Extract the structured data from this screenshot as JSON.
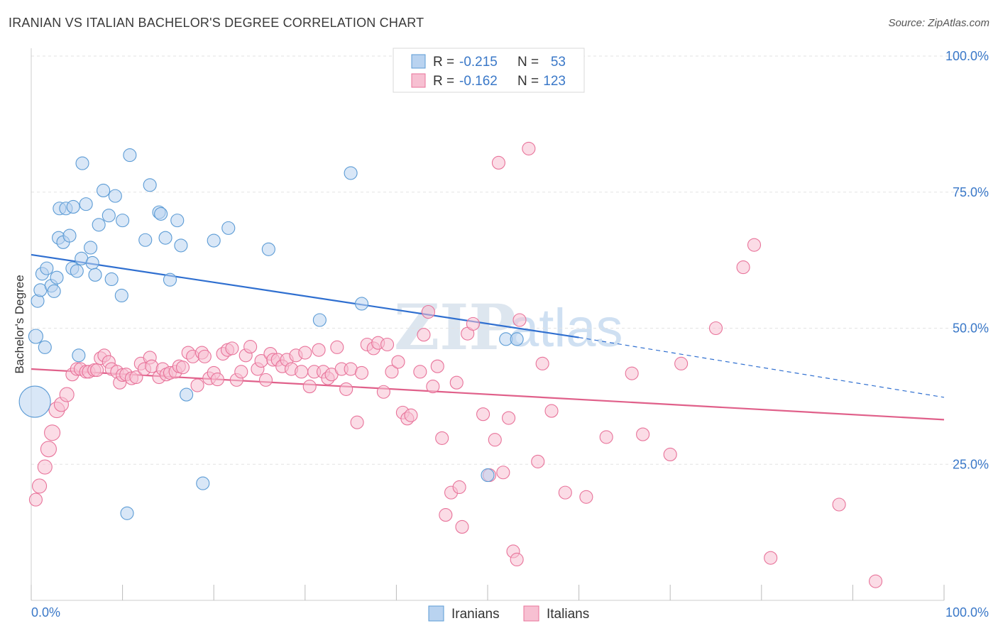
{
  "title": "IRANIAN VS ITALIAN BACHELOR'S DEGREE CORRELATION CHART",
  "source": "Source: ZipAtlas.com",
  "watermark": {
    "zip": "ZIP",
    "atlas": "atlas"
  },
  "colors": {
    "blue": "#5b9bd5",
    "blue_fill": "#b9d3f0",
    "pink": "#e8739a",
    "pink_fill": "#f7c0d2",
    "blue_line": "#2f6fd0",
    "pink_line": "#e0608a",
    "label": "#3a78c8"
  },
  "legend": {
    "rows": [
      {
        "r_label": "R =",
        "r_value": "-0.215",
        "n_label": "N =",
        "n_value": "53"
      },
      {
        "r_label": "R =",
        "r_value": "-0.162",
        "n_label": "N =",
        "n_value": "123"
      }
    ]
  },
  "chart_data": {
    "type": "scatter",
    "title": "IRANIAN VS ITALIAN BACHELOR'S DEGREE CORRELATION CHART",
    "xlabel": "",
    "ylabel": "Bachelor's Degree",
    "xlim": [
      0,
      100
    ],
    "ylim": [
      0,
      100
    ],
    "x_tick_labels": [
      "0.0%",
      "100.0%"
    ],
    "y_ticks": [
      25,
      50,
      75,
      100
    ],
    "y_tick_labels": [
      "25.0%",
      "50.0%",
      "75.0%",
      "100.0%"
    ],
    "grid": "horizontal dashed",
    "legend_position": "top-center",
    "series": [
      {
        "name": "Iranians",
        "color": "#5b9bd5",
        "trend": {
          "x0": 0,
          "y0": 63.5,
          "x1": 60,
          "y1": 48.3,
          "dashed_to_x": 100,
          "dashed_to_y": 37.3
        },
        "points": [
          [
            0.4,
            36.5,
            22
          ],
          [
            0.5,
            48.5,
            10
          ],
          [
            0.7,
            55,
            9
          ],
          [
            1,
            57,
            9
          ],
          [
            1.2,
            60,
            9
          ],
          [
            1.5,
            46.5,
            9
          ],
          [
            1.7,
            61,
            9
          ],
          [
            2.2,
            57.8,
            9
          ],
          [
            2.5,
            56.8,
            9
          ],
          [
            2.8,
            59.3,
            9
          ],
          [
            3,
            66.6,
            9
          ],
          [
            3.1,
            72,
            9
          ],
          [
            3.5,
            65.8,
            9
          ],
          [
            3.8,
            72,
            9
          ],
          [
            4.2,
            67,
            9
          ],
          [
            4.5,
            61,
            9
          ],
          [
            5,
            60.5,
            9
          ],
          [
            4.6,
            72.3,
            9
          ],
          [
            5.2,
            45,
            9
          ],
          [
            5.5,
            62.8,
            9
          ],
          [
            5.6,
            80.3,
            9
          ],
          [
            6,
            72.8,
            9
          ],
          [
            6.5,
            64.8,
            9
          ],
          [
            6.7,
            62,
            9
          ],
          [
            7,
            59.8,
            9
          ],
          [
            7.4,
            69,
            9
          ],
          [
            7.9,
            75.3,
            9
          ],
          [
            8.5,
            70.7,
            9
          ],
          [
            8.8,
            59,
            9
          ],
          [
            9.2,
            74.3,
            9
          ],
          [
            9.9,
            56,
            9
          ],
          [
            10,
            69.8,
            9
          ],
          [
            10.5,
            16,
            9
          ],
          [
            10.8,
            81.8,
            9
          ],
          [
            12.5,
            66.2,
            9
          ],
          [
            13,
            76.3,
            9
          ],
          [
            14,
            71.3,
            9
          ],
          [
            14.2,
            71,
            9
          ],
          [
            14.7,
            66.6,
            9
          ],
          [
            15.2,
            58.9,
            9
          ],
          [
            16,
            69.8,
            9
          ],
          [
            16.4,
            65.2,
            9
          ],
          [
            17,
            37.8,
            9
          ],
          [
            18.8,
            21.5,
            9
          ],
          [
            20,
            66.1,
            9
          ],
          [
            21.6,
            68.4,
            9
          ],
          [
            26,
            64.5,
            9
          ],
          [
            31.6,
            51.5,
            9
          ],
          [
            35,
            78.5,
            9
          ],
          [
            36.2,
            54.5,
            9
          ],
          [
            50,
            23,
            9
          ],
          [
            52,
            48,
            9
          ],
          [
            53.2,
            48,
            9
          ]
        ]
      },
      {
        "name": "Italians",
        "color": "#e8739a",
        "trend": {
          "x0": 0,
          "y0": 42.5,
          "x1": 100,
          "y1": 33.2
        },
        "points": [
          [
            0.5,
            18.5,
            9
          ],
          [
            0.9,
            21,
            10
          ],
          [
            1.5,
            24.5,
            10
          ],
          [
            1.9,
            27.8,
            11
          ],
          [
            2.3,
            30.8,
            11
          ],
          [
            2.8,
            35,
            11
          ],
          [
            3.3,
            36,
            10
          ],
          [
            3.9,
            37.8,
            10
          ],
          [
            4.5,
            41.5,
            9
          ],
          [
            5,
            42.5,
            9
          ],
          [
            5.4,
            42.5,
            9
          ],
          [
            6,
            42,
            9
          ],
          [
            6.3,
            42,
            9
          ],
          [
            6.9,
            42.3,
            9
          ],
          [
            7.2,
            42.3,
            9
          ],
          [
            7.6,
            44.5,
            9
          ],
          [
            8,
            45,
            9
          ],
          [
            8.5,
            43.8,
            9
          ],
          [
            8.8,
            42.5,
            9
          ],
          [
            9.4,
            42,
            9
          ],
          [
            9.7,
            40,
            9
          ],
          [
            10,
            41.4,
            9
          ],
          [
            10.4,
            41.5,
            9
          ],
          [
            11,
            40.8,
            9
          ],
          [
            11.5,
            41,
            9
          ],
          [
            12,
            43.5,
            9
          ],
          [
            12.4,
            42.5,
            9
          ],
          [
            13,
            44.6,
            9
          ],
          [
            13.2,
            43,
            9
          ],
          [
            14,
            41,
            9
          ],
          [
            14.4,
            42.5,
            9
          ],
          [
            14.8,
            41.5,
            9
          ],
          [
            15.2,
            41.8,
            9
          ],
          [
            15.8,
            42,
            9
          ],
          [
            16.2,
            43,
            9
          ],
          [
            16.6,
            42.8,
            9
          ],
          [
            17.2,
            45.5,
            9
          ],
          [
            17.7,
            44.8,
            9
          ],
          [
            18.2,
            39.5,
            9
          ],
          [
            18.7,
            45.5,
            9
          ],
          [
            19,
            44.8,
            9
          ],
          [
            19.5,
            40.8,
            9
          ],
          [
            20,
            41.8,
            9
          ],
          [
            20.4,
            40.6,
            9
          ],
          [
            21,
            45.3,
            9
          ],
          [
            21.5,
            46,
            9
          ],
          [
            22,
            46.3,
            9
          ],
          [
            22.5,
            40.5,
            9
          ],
          [
            23,
            42,
            9
          ],
          [
            23.5,
            45,
            9
          ],
          [
            24,
            46.6,
            9
          ],
          [
            24.8,
            42.5,
            9
          ],
          [
            25.2,
            44,
            9
          ],
          [
            25.7,
            40.5,
            9
          ],
          [
            26.2,
            45.3,
            9
          ],
          [
            26.5,
            44.2,
            9
          ],
          [
            27,
            44.2,
            9
          ],
          [
            27.5,
            43,
            9
          ],
          [
            28,
            44.2,
            9
          ],
          [
            28.5,
            42.5,
            9
          ],
          [
            29,
            45,
            9
          ],
          [
            29.6,
            42,
            9
          ],
          [
            30,
            45.5,
            9
          ],
          [
            30.5,
            39.3,
            9
          ],
          [
            31,
            42,
            9
          ],
          [
            31.5,
            46,
            9
          ],
          [
            32,
            42,
            9
          ],
          [
            32.5,
            40.8,
            9
          ],
          [
            32.9,
            41.5,
            9
          ],
          [
            33.5,
            46.5,
            9
          ],
          [
            34,
            42.5,
            9
          ],
          [
            34.5,
            38.8,
            9
          ],
          [
            35,
            42.5,
            9
          ],
          [
            35.7,
            32.7,
            9
          ],
          [
            36.2,
            41.8,
            9
          ],
          [
            36.8,
            47,
            9
          ],
          [
            37.5,
            46.3,
            9
          ],
          [
            38,
            47.3,
            9
          ],
          [
            38.6,
            38.3,
            9
          ],
          [
            39,
            47,
            9
          ],
          [
            39.5,
            42,
            9
          ],
          [
            40.2,
            43.8,
            9
          ],
          [
            40.7,
            34.5,
            9
          ],
          [
            41.2,
            33.4,
            9
          ],
          [
            41.6,
            34,
            9
          ],
          [
            42.6,
            42,
            9
          ],
          [
            43,
            48.8,
            9
          ],
          [
            43.5,
            53,
            9
          ],
          [
            44,
            39.3,
            9
          ],
          [
            44.5,
            43,
            9
          ],
          [
            45,
            29.8,
            9
          ],
          [
            45.4,
            15.7,
            9
          ],
          [
            46,
            19.8,
            9
          ],
          [
            46.6,
            40,
            9
          ],
          [
            46.9,
            20.8,
            9
          ],
          [
            47.2,
            13.5,
            9
          ],
          [
            47.8,
            49,
            9
          ],
          [
            48.4,
            50.8,
            9
          ],
          [
            49.5,
            34.2,
            9
          ],
          [
            50.2,
            23,
            9
          ],
          [
            50.8,
            29.5,
            9
          ],
          [
            51.2,
            80.4,
            9
          ],
          [
            51.7,
            23.5,
            9
          ],
          [
            52.3,
            33.5,
            9
          ],
          [
            52.8,
            9,
            9
          ],
          [
            53.2,
            7.5,
            9
          ],
          [
            53.5,
            51.5,
            9
          ],
          [
            54.5,
            83,
            9
          ],
          [
            55.5,
            25.5,
            9
          ],
          [
            56,
            43.5,
            9
          ],
          [
            57,
            34.8,
            9
          ],
          [
            58.5,
            19.8,
            9
          ],
          [
            60.8,
            19,
            9
          ],
          [
            63,
            30,
            9
          ],
          [
            65.8,
            41.7,
            9
          ],
          [
            67,
            30.5,
            9
          ],
          [
            70,
            26.8,
            9
          ],
          [
            71.2,
            43.5,
            9
          ],
          [
            75,
            50,
            9
          ],
          [
            78,
            61.2,
            9
          ],
          [
            79.2,
            65.3,
            9
          ],
          [
            81,
            7.8,
            9
          ],
          [
            88.5,
            17.6,
            9
          ],
          [
            92.5,
            3.5,
            9
          ]
        ]
      }
    ]
  }
}
